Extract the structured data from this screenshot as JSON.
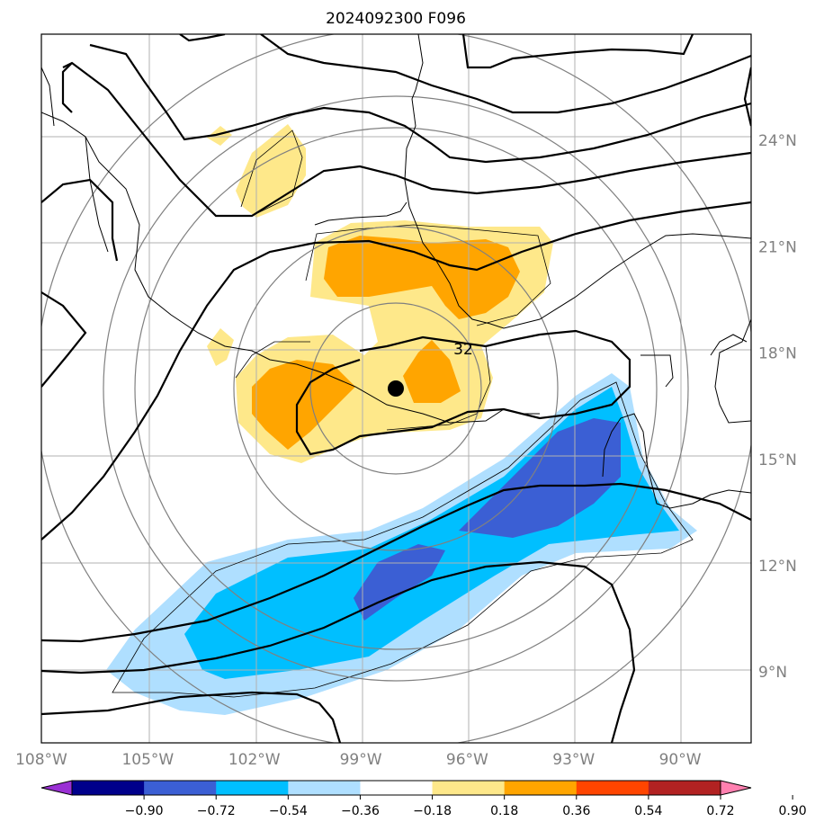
{
  "title": "2024092300 F096",
  "map": {
    "lon_range": [
      -108,
      -88
    ],
    "lat_range": [
      7,
      27
    ],
    "lon_ticks": [
      {
        "value": -108,
        "label": "108°W"
      },
      {
        "value": -105,
        "label": "105°W"
      },
      {
        "value": -102,
        "label": "102°W"
      },
      {
        "value": -99,
        "label": "99°W"
      },
      {
        "value": -96,
        "label": "96°W"
      },
      {
        "value": -93,
        "label": "93°W"
      },
      {
        "value": -90,
        "label": "90°W"
      }
    ],
    "lat_ticks": [
      {
        "value": 24,
        "label": "24°N"
      },
      {
        "value": 21,
        "label": "21°N"
      },
      {
        "value": 18,
        "label": "18°N"
      },
      {
        "value": 15,
        "label": "15°N"
      },
      {
        "value": 12,
        "label": "12°N"
      },
      {
        "value": 9,
        "label": "9°N"
      }
    ],
    "center_marker": {
      "lon": -98.0,
      "lat": 16.9
    },
    "range_ring_radii_deg": [
      2.5,
      5,
      7.5,
      10,
      12.5
    ],
    "contour_label": {
      "text": "32",
      "lon": -95.8,
      "lat": 17.9
    },
    "colors": {
      "positive_light": "#fee88a",
      "positive_medium": "#ffa500",
      "negative_light": "#afdfff",
      "negative_medium": "#00bfff",
      "negative_strong": "#3b5fd4",
      "grid": "#b0b0b0",
      "rings": "#808080"
    }
  },
  "colorbar": {
    "levels": [
      "−0.90",
      "−0.72",
      "−0.54",
      "−0.36",
      "−0.18",
      "0.18",
      "0.36",
      "0.54",
      "0.72",
      "0.90"
    ],
    "colors": [
      "#9a30d4",
      "#00008b",
      "#3b5fd4",
      "#00bfff",
      "#afdfff",
      "#ffffff",
      "#fee88a",
      "#ffa500",
      "#ff4500",
      "#b22222",
      "#ff80b0"
    ]
  }
}
